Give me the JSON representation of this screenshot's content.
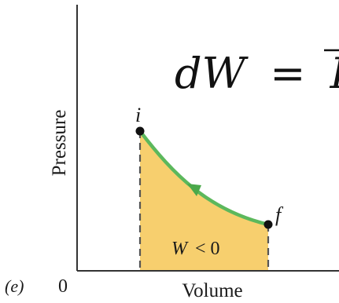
{
  "panel_label": "(e)",
  "axes": {
    "origin_label": "0",
    "xlabel": "Volume",
    "ylabel": "Pressure"
  },
  "equation": {
    "lhs": "dW",
    "operator": "=",
    "rhs_partial": "P"
  },
  "points": {
    "initial": "i",
    "final": "f"
  },
  "area_label": {
    "symbol": "W",
    "relation": "< 0"
  },
  "colors": {
    "curve": "#5cb85c",
    "area_fill": "#f7cf6e",
    "axes": "#333333",
    "dashed": "#555555",
    "point": "#111111"
  },
  "process_direction": "f-to-i"
}
